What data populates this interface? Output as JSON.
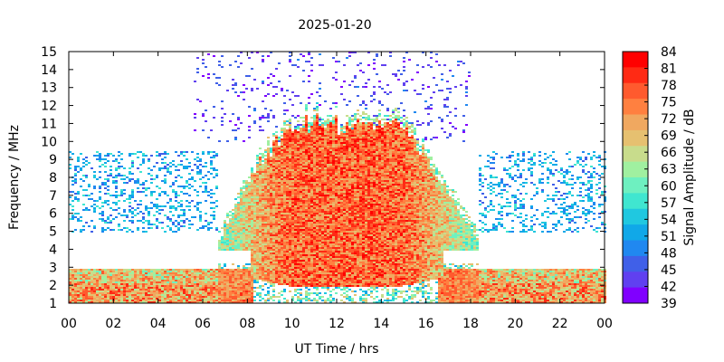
{
  "chart_data": {
    "type": "heatmap",
    "title": "2025-01-20",
    "xlabel": "UT Time / hrs",
    "ylabel": "Frequency / MHz",
    "colorbar_label": "Signal Amplitude / dB",
    "xlim": [
      0,
      24
    ],
    "ylim": [
      1,
      15
    ],
    "x_ticks": [
      "00",
      "02",
      "04",
      "06",
      "08",
      "10",
      "12",
      "14",
      "16",
      "18",
      "20",
      "22",
      "00"
    ],
    "y_ticks": [
      "1",
      "2",
      "3",
      "4",
      "5",
      "6",
      "7",
      "8",
      "9",
      "10",
      "11",
      "12",
      "13",
      "14",
      "15"
    ],
    "colorbar_ticks": [
      "84",
      "81",
      "78",
      "75",
      "72",
      "69",
      "66",
      "63",
      "60",
      "57",
      "54",
      "51",
      "48",
      "45",
      "42",
      "39"
    ],
    "colorbar_colors": [
      "#ff0000",
      "#ff2a14",
      "#ff5a2e",
      "#ff8040",
      "#f0a860",
      "#e6c070",
      "#c8dc8c",
      "#a0f0a0",
      "#6ef0c0",
      "#40e6d0",
      "#20c8e0",
      "#10a8e8",
      "#2088f0",
      "#4060e8",
      "#6040f0",
      "#8000ff"
    ],
    "features": {
      "daytime_absorption_hours": [
        6.5,
        18.5
      ],
      "peak_frequency_mhz": 12,
      "strong_band_mhz": [
        4,
        10
      ],
      "night_low_band_mhz": [
        1,
        3
      ],
      "night_mid_band_mhz": [
        5,
        9.5
      ],
      "sporadic_high_band_hours": [
        5.5,
        18
      ],
      "sporadic_high_band_mhz": [
        10,
        15
      ]
    }
  }
}
